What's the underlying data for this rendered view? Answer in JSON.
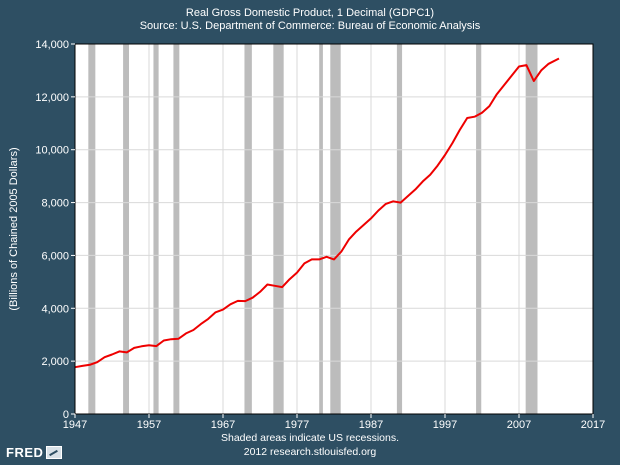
{
  "chart_data": {
    "type": "line",
    "title": "Real Gross Domestic Product, 1 Decimal (GDPC1)",
    "subtitle": "Source: U.S. Department of Commerce: Bureau of Economic Analysis",
    "xlabel": "",
    "ylabel": "(Billions of Chained 2005 Dollars)",
    "xlim": [
      1947,
      2017
    ],
    "ylim": [
      0,
      14000
    ],
    "x_ticks": [
      1947,
      1957,
      1967,
      1977,
      1987,
      1997,
      2007,
      2017
    ],
    "x_tick_labels": [
      "1947",
      "1957",
      "1967",
      "1977",
      "1987",
      "1997",
      "2007",
      "2017"
    ],
    "y_ticks": [
      0,
      2000,
      4000,
      6000,
      8000,
      10000,
      12000,
      14000
    ],
    "y_tick_labels": [
      "0",
      "2,000",
      "4,000",
      "6,000",
      "8,000",
      "10,000",
      "12,000",
      "14,000"
    ],
    "grid": true,
    "line_color": "#ee0000",
    "recession_color": "#bcbcbc",
    "recessions": [
      [
        1948.8,
        1949.75
      ],
      [
        1953.5,
        1954.3
      ],
      [
        1957.6,
        1958.3
      ],
      [
        1960.3,
        1961.1
      ],
      [
        1969.9,
        1970.9
      ],
      [
        1973.8,
        1975.2
      ],
      [
        1980.0,
        1980.5
      ],
      [
        1981.5,
        1982.9
      ],
      [
        1990.5,
        1991.2
      ],
      [
        2001.2,
        2001.9
      ],
      [
        2007.9,
        2009.5
      ]
    ],
    "series": [
      {
        "name": "GDPC1",
        "x": [
          1947,
          1948,
          1949,
          1950,
          1951,
          1952,
          1953,
          1954,
          1955,
          1956,
          1957,
          1958,
          1959,
          1960,
          1961,
          1962,
          1963,
          1964,
          1965,
          1966,
          1967,
          1968,
          1969,
          1970,
          1971,
          1972,
          1973,
          1974,
          1975,
          1976,
          1977,
          1978,
          1979,
          1980,
          1981,
          1982,
          1983,
          1984,
          1985,
          1986,
          1987,
          1988,
          1989,
          1990,
          1991,
          1992,
          1993,
          1994,
          1995,
          1996,
          1997,
          1998,
          1999,
          2000,
          2001,
          2002,
          2003,
          2004,
          2005,
          2006,
          2007,
          2008,
          2009,
          2010,
          2011,
          2012.4
        ],
        "values": [
          1770,
          1820,
          1860,
          1960,
          2150,
          2250,
          2370,
          2330,
          2500,
          2560,
          2600,
          2570,
          2780,
          2830,
          2850,
          3050,
          3180,
          3400,
          3600,
          3850,
          3950,
          4150,
          4280,
          4270,
          4400,
          4620,
          4900,
          4850,
          4800,
          5100,
          5350,
          5700,
          5850,
          5850,
          5950,
          5850,
          6150,
          6600,
          6900,
          7150,
          7400,
          7700,
          7950,
          8050,
          8000,
          8250,
          8500,
          8800,
          9050,
          9400,
          9800,
          10250,
          10750,
          11200,
          11250,
          11400,
          11650,
          12100,
          12450,
          12800,
          13150,
          13200,
          12600,
          13000,
          13250,
          13450
        ]
      }
    ]
  },
  "footer": {
    "note": "Shaded areas indicate US recessions.",
    "source": "2012 research.stlouisfed.org"
  },
  "logo": {
    "text": "FRED"
  }
}
